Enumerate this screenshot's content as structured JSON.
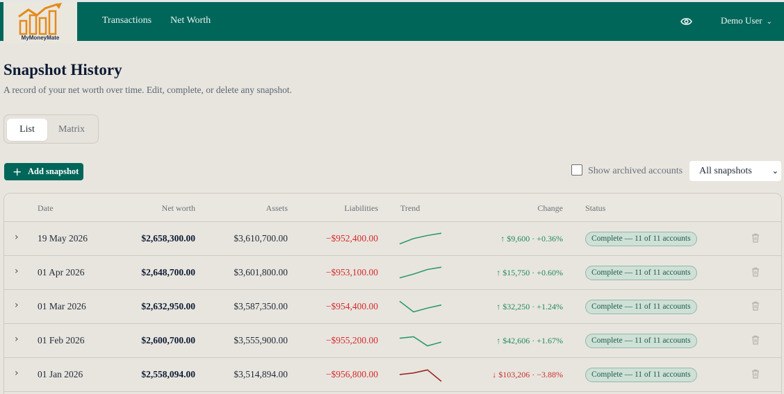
{
  "brand": {
    "name": "MyMoneyMate",
    "logo_colors": {
      "accent": "#e58a1a"
    }
  },
  "nav": {
    "links": [
      "Transactions",
      "Net Worth"
    ],
    "user": "Demo User"
  },
  "page": {
    "title": "Snapshot History",
    "subtitle": "A record of your net worth over time. Edit, complete, or delete any snapshot."
  },
  "tabs": [
    {
      "label": "List",
      "active": true
    },
    {
      "label": "Matrix",
      "active": false
    }
  ],
  "toolbar": {
    "add_label": "Add snapshot",
    "archived_label": "Show archived accounts",
    "archived_checked": false,
    "filter_value": "All snapshots"
  },
  "table": {
    "headers": {
      "date": "Date",
      "net_worth": "Net worth",
      "assets": "Assets",
      "liabilities": "Liabilities",
      "trend": "Trend",
      "change": "Change",
      "status": "Status"
    },
    "rows": [
      {
        "date": "19 May 2026",
        "net_worth": "$2,658,300.00",
        "assets": "$3,610,700.00",
        "liabilities": "−$952,400.00",
        "trend_dir": "up",
        "trend": [
          0.2,
          0.55,
          0.75,
          0.9
        ],
        "change": "↑ $9,600 · +0.36%",
        "status": "Complete — 11 of 11 accounts"
      },
      {
        "date": "01 Apr 2026",
        "net_worth": "$2,648,700.00",
        "assets": "$3,601,800.00",
        "liabilities": "−$953,100.00",
        "trend_dir": "up",
        "trend": [
          0.2,
          0.45,
          0.75,
          0.9
        ],
        "change": "↑ $15,750 · +0.60%",
        "status": "Complete — 11 of 11 accounts"
      },
      {
        "date": "01 Mar 2026",
        "net_worth": "$2,632,950.00",
        "assets": "$3,587,350.00",
        "liabilities": "−$954,400.00",
        "trend_dir": "up",
        "trend": [
          0.9,
          0.2,
          0.45,
          0.65
        ],
        "change": "↑ $32,250 · +1.24%",
        "status": "Complete — 11 of 11 accounts"
      },
      {
        "date": "01 Feb 2026",
        "net_worth": "$2,600,700.00",
        "assets": "$3,555,900.00",
        "liabilities": "−$955,200.00",
        "trend_dir": "up",
        "trend": [
          0.7,
          0.8,
          0.2,
          0.45
        ],
        "change": "↑ $42,606 · +1.67%",
        "status": "Complete — 11 of 11 accounts"
      },
      {
        "date": "01 Jan 2026",
        "net_worth": "$2,558,094.00",
        "assets": "$3,514,894.00",
        "liabilities": "−$956,800.00",
        "trend_dir": "down",
        "trend": [
          0.55,
          0.65,
          0.85,
          0.1
        ],
        "change": "↓ $103,206 · −3.88%",
        "status": "Complete — 11 of 11 accounts"
      }
    ]
  },
  "colors": {
    "primary": "#00665a",
    "positive": "#1f8a5b",
    "negative": "#c9312c",
    "liability": "#d52a2a"
  }
}
